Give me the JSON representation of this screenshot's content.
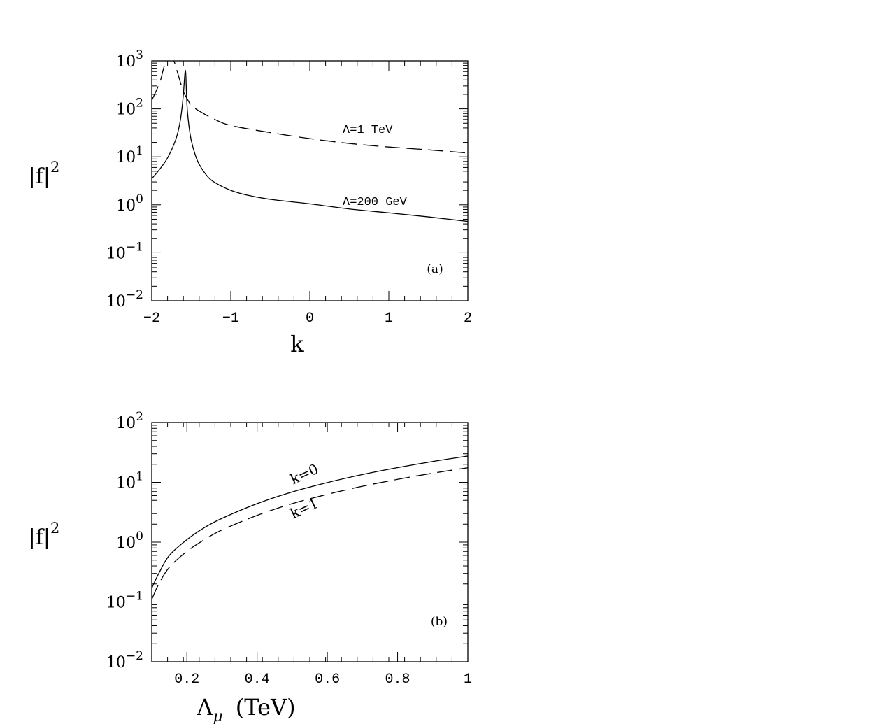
{
  "chart_data": [
    {
      "type": "line",
      "panel_label": "(a)",
      "xlabel": "k",
      "ylabel": "|f|",
      "ylabel_sup": "2",
      "xlim": [
        -2,
        2
      ],
      "ylim": [
        0.01,
        1000
      ],
      "yscale": "log",
      "x_ticks": [
        -2,
        -1,
        0,
        1,
        2
      ],
      "x_tick_labels": [
        "−2",
        "−1",
        "0",
        "1",
        "2"
      ],
      "y_ticks": [
        0.01,
        0.1,
        1,
        10,
        100,
        1000
      ],
      "y_tick_labels": [
        {
          "base": "10",
          "exp": "−2"
        },
        {
          "base": "10",
          "exp": "−1"
        },
        {
          "base": "10",
          "exp": "0"
        },
        {
          "base": "10",
          "exp": "1"
        },
        {
          "base": "10",
          "exp": "2"
        },
        {
          "base": "10",
          "exp": "3"
        }
      ],
      "series": [
        {
          "name": "Λ=200 GeV",
          "dash": "solid",
          "x": [
            -2.0,
            -1.9,
            -1.8,
            -1.7,
            -1.65,
            -1.62,
            -1.6,
            -1.58,
            -1.57,
            -1.56,
            -1.55,
            -1.53,
            -1.5,
            -1.45,
            -1.4,
            -1.3,
            -1.2,
            -1.0,
            -0.8,
            -0.5,
            0.0,
            0.5,
            1.0,
            1.5,
            2.0
          ],
          "y": [
            3.5,
            5.5,
            9.5,
            22,
            45,
            95,
            200,
            560,
            560,
            200,
            95,
            45,
            22,
            11,
            7,
            4,
            2.9,
            2.0,
            1.6,
            1.3,
            1.05,
            0.82,
            0.68,
            0.56,
            0.45
          ]
        },
        {
          "name": "Λ=1 TeV",
          "dash": "dashed",
          "x": [
            -2.0,
            -1.9,
            -1.85,
            -1.8,
            -1.75,
            -1.72,
            -1.7,
            -1.65,
            -1.6,
            -1.55,
            -1.5,
            -1.4,
            -1.2,
            -1.0,
            -0.5,
            0.0,
            0.5,
            1.0,
            1.5,
            2.0
          ],
          "y": [
            150,
            350,
            700,
            1200,
            1200,
            1000,
            800,
            420,
            230,
            160,
            120,
            90,
            60,
            45,
            32,
            24,
            19,
            16,
            14,
            12
          ]
        }
      ],
      "annotations": [
        "Λ=1 TeV",
        "Λ=200 GeV"
      ]
    },
    {
      "type": "line",
      "panel_label": "(b)",
      "xlabel": "Λ",
      "xlabel_sub": "μ",
      "xlabel_unit": "(TeV)",
      "ylabel": "|f|",
      "ylabel_sup": "2",
      "xlim": [
        0.1,
        1.0
      ],
      "ylim": [
        0.01,
        100
      ],
      "yscale": "log",
      "x_ticks": [
        0.2,
        0.4,
        0.6,
        0.8,
        1.0
      ],
      "x_tick_labels": [
        "0.2",
        "0.4",
        "0.6",
        "0.8",
        "1"
      ],
      "y_ticks": [
        0.01,
        0.1,
        1,
        10,
        100
      ],
      "y_tick_labels": [
        {
          "base": "10",
          "exp": "−2"
        },
        {
          "base": "10",
          "exp": "−1"
        },
        {
          "base": "10",
          "exp": "0"
        },
        {
          "base": "10",
          "exp": "1"
        },
        {
          "base": "10",
          "exp": "2"
        }
      ],
      "series": [
        {
          "name": "k=0",
          "dash": "solid",
          "x": [
            0.1,
            0.12,
            0.15,
            0.2,
            0.25,
            0.3,
            0.4,
            0.5,
            0.6,
            0.7,
            0.8,
            0.9,
            1.0
          ],
          "y": [
            0.17,
            0.3,
            0.6,
            1.1,
            1.75,
            2.5,
            4.4,
            6.9,
            9.9,
            13.5,
            17.6,
            22.3,
            27.5
          ]
        },
        {
          "name": "k=1",
          "dash": "dashed",
          "x": [
            0.1,
            0.12,
            0.15,
            0.2,
            0.25,
            0.3,
            0.4,
            0.5,
            0.6,
            0.7,
            0.8,
            0.9,
            1.0
          ],
          "y": [
            0.11,
            0.2,
            0.38,
            0.7,
            1.1,
            1.6,
            2.8,
            4.4,
            6.3,
            8.6,
            11.2,
            14.2,
            17.5
          ]
        }
      ],
      "annotations": [
        "k=0",
        "k=1"
      ]
    }
  ]
}
